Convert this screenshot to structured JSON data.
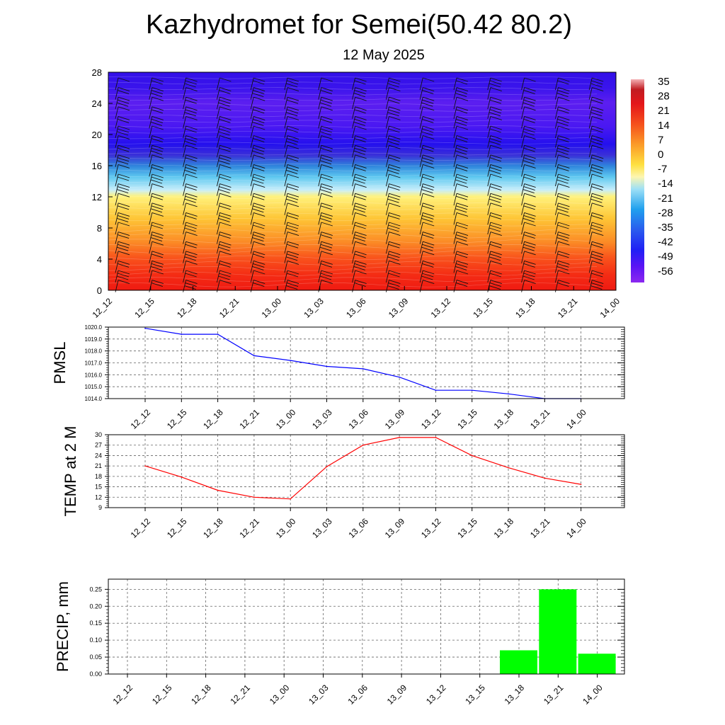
{
  "header": {
    "title": "Kazhydromet for Semei(50.42 80.2)",
    "subtitle": "12 May 2025"
  },
  "chart_data": [
    {
      "type": "heatmap",
      "variable": "temperature",
      "y_ticks": [
        "0",
        "4",
        "8",
        "12",
        "16",
        "20",
        "24",
        "28"
      ],
      "ylim": [
        0,
        28
      ],
      "x_ticks": [
        "12_12",
        "12_15",
        "12_18",
        "12_21",
        "13_00",
        "13_03",
        "13_06",
        "13_09",
        "13_12",
        "13_15",
        "13_18",
        "13_21",
        "14_00"
      ],
      "colorbar": {
        "labels": [
          "35",
          "28",
          "21",
          "14",
          "7",
          "0",
          "-7",
          "-14",
          "-21",
          "-28",
          "-35",
          "-42",
          "-49",
          "-56"
        ],
        "range": [
          -63,
          35
        ]
      },
      "overlay": "wind barbs",
      "approx_level_temperatures": [
        {
          "level": 0,
          "value": 20
        },
        {
          "level": 4,
          "value": 15
        },
        {
          "level": 8,
          "value": 7
        },
        {
          "level": 12,
          "value": -1
        },
        {
          "level": 14,
          "value": -18
        },
        {
          "level": 16,
          "value": -40
        },
        {
          "level": 18,
          "value": -58
        },
        {
          "level": 22,
          "value": -55
        },
        {
          "level": 26,
          "value": -57
        },
        {
          "level": 28,
          "value": -58
        }
      ]
    },
    {
      "type": "line",
      "ylabel": "PMSL",
      "ylim": [
        1014.0,
        1020.0
      ],
      "y_ticks": [
        "1014.0",
        "1015.0",
        "1016.0",
        "1017.0",
        "1018.0",
        "1019.0",
        "1020.0"
      ],
      "x": [
        "12_12",
        "12_15",
        "12_18",
        "12_21",
        "13_00",
        "13_03",
        "13_06",
        "13_09",
        "13_12",
        "13_15",
        "13_18",
        "13_21",
        "14_00"
      ],
      "values": [
        1019.9,
        1019.4,
        1019.4,
        1017.6,
        1017.2,
        1016.7,
        1016.5,
        1015.8,
        1014.7,
        1014.7,
        1014.4,
        1014.0,
        1014.0
      ],
      "color": "#0000ff"
    },
    {
      "type": "line",
      "ylabel": "TEMP at 2 M",
      "ylim": [
        9,
        30
      ],
      "y_ticks": [
        "9",
        "12",
        "15",
        "18",
        "21",
        "24",
        "27",
        "30"
      ],
      "x": [
        "12_12",
        "12_15",
        "12_18",
        "12_21",
        "13_00",
        "13_03",
        "13_06",
        "13_09",
        "13_12",
        "13_15",
        "13_18",
        "13_21",
        "14_00"
      ],
      "values": [
        21.0,
        17.8,
        14.0,
        12.0,
        11.5,
        20.8,
        27.0,
        29.2,
        29.2,
        24.0,
        20.5,
        17.5,
        15.7
      ],
      "color": "#ff0000"
    },
    {
      "type": "bar",
      "ylabel": "PRECIP, mm",
      "ylim": [
        0,
        0.28
      ],
      "y_ticks": [
        "0.00",
        "0.05",
        "0.10",
        "0.15",
        "0.20",
        "0.25"
      ],
      "categories": [
        "12_12",
        "12_15",
        "12_18",
        "12_21",
        "13_00",
        "13_03",
        "13_06",
        "13_09",
        "13_12",
        "13_15",
        "13_18",
        "13_21",
        "14_00"
      ],
      "values": [
        0,
        0,
        0,
        0,
        0,
        0,
        0,
        0,
        0,
        0,
        0.07,
        0.25,
        0.06
      ],
      "color": "#00ff00"
    }
  ]
}
